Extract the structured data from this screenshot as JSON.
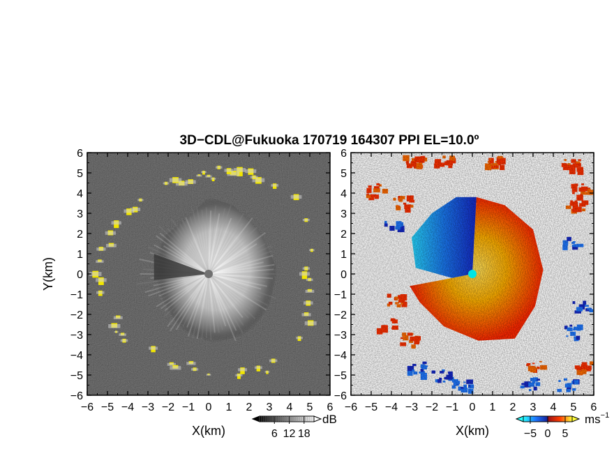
{
  "title": "3D−CDL@Fukuoka 170719 164307 PPI EL=10.0º",
  "colors": {
    "left_bg": "#2b2b2b",
    "left_echo_light": "#d9d9d9",
    "left_yellow": "#f2e600",
    "right_bg": "#ffffff",
    "right_neg_dark": "#1428c8",
    "right_neg_light": "#28c8ff",
    "right_pos_red": "#ff3000",
    "right_pos_yellow": "#ffb400",
    "center_left": "#707070",
    "center_right": "#00e6e6"
  },
  "chart_data": [
    {
      "type": "heatmap",
      "name": "left",
      "quantity": "reflectivity / SNR",
      "xlim": [
        -6,
        6
      ],
      "ylim": [
        -6,
        6
      ],
      "xticks": [
        -6,
        -5,
        -4,
        -3,
        -2,
        -1,
        0,
        1,
        2,
        3,
        4,
        5,
        6
      ],
      "yticks": [
        -6,
        -5,
        -4,
        -3,
        -2,
        -1,
        0,
        1,
        2,
        3,
        4,
        5,
        6
      ],
      "xtick_labels": [
        "−6",
        "−5",
        "−4",
        "−3",
        "−2",
        "−1",
        "0",
        "1",
        "2",
        "3",
        "4",
        "5",
        "6"
      ],
      "ytick_labels": [
        "−6",
        "−5",
        "−4",
        "−3",
        "−2",
        "−1",
        "0",
        "1",
        "2",
        "3",
        "4",
        "5",
        "6"
      ],
      "xlabel": "X(km)",
      "ylabel": "Y(km)",
      "colorbar": {
        "unit": "dB",
        "tick_values": [
          6,
          12,
          18
        ],
        "tick_labels": [
          "6",
          "12",
          "18"
        ],
        "range": [
          0,
          22
        ]
      }
    },
    {
      "type": "heatmap",
      "name": "right",
      "quantity": "Doppler velocity",
      "xlim": [
        -6,
        6
      ],
      "ylim": [
        -6,
        6
      ],
      "xticks": [
        -6,
        -5,
        -4,
        -3,
        -2,
        -1,
        0,
        1,
        2,
        3,
        4,
        5,
        6
      ],
      "yticks": [
        -6,
        -5,
        -4,
        -3,
        -2,
        -1,
        0,
        1,
        2,
        3,
        4,
        5,
        6
      ],
      "xtick_labels": [
        "−6",
        "−5",
        "−4",
        "−3",
        "−2",
        "−1",
        "0",
        "1",
        "2",
        "3",
        "4",
        "5",
        "6"
      ],
      "ytick_labels": [
        "−6",
        "−5",
        "−4",
        "−3",
        "−2",
        "−1",
        "0",
        "1",
        "2",
        "3",
        "4",
        "5",
        "6"
      ],
      "xlabel": "X(km)",
      "ylabel": "",
      "colorbar": {
        "unit": "ms",
        "unit_exp": "−1",
        "tick_values": [
          -5,
          0,
          5
        ],
        "tick_labels": [
          "−5",
          "0",
          "5"
        ],
        "range": [
          -7,
          7
        ]
      }
    }
  ]
}
